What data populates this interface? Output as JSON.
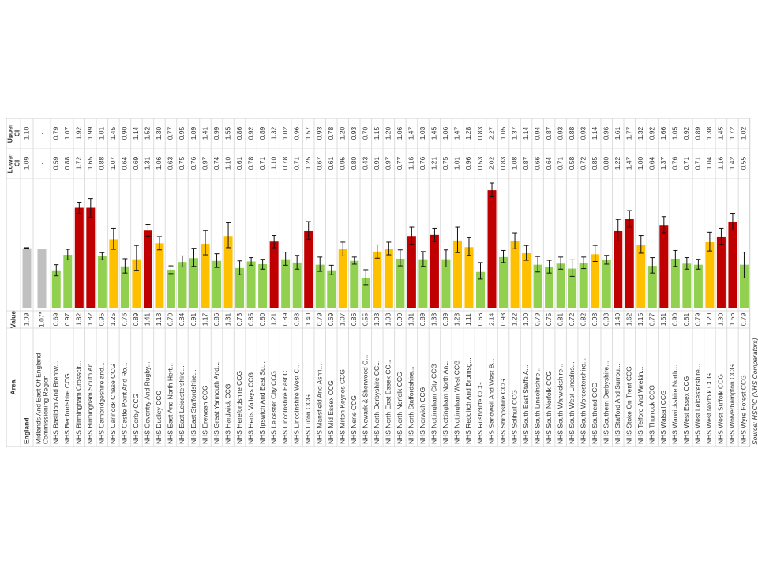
{
  "headers": {
    "area": "Area",
    "value": "Value",
    "lower": [
      "Lower",
      "CI"
    ],
    "upper": [
      "Upper",
      "CI"
    ]
  },
  "source": "Source: HSCIC (NHS Comparators)",
  "rows": [
    {
      "area": "England",
      "value": "1.09",
      "lower": "1.09",
      "upper": "1.10",
      "color": "#c0c0c0"
    },
    {
      "area": [
        "Midlands And East Of England",
        "Commissioning Region"
      ],
      "value": "1.07*",
      "lower": "-",
      "upper": "-",
      "color": "#c0c0c0"
    },
    {
      "area": "NHS Basildon And Brentw...",
      "value": "0.69",
      "lower": "0.59",
      "upper": "0.79",
      "color": "#92d050"
    },
    {
      "area": "NHS Bedfordshire CCG",
      "value": "0.97",
      "lower": "0.88",
      "upper": "1.07",
      "color": "#92d050"
    },
    {
      "area": "NHS Birmingham Crosscit...",
      "value": "1.82",
      "lower": "1.72",
      "upper": "1.92",
      "color": "#c00000"
    },
    {
      "area": "NHS Birmingham South An...",
      "value": "1.82",
      "lower": "1.65",
      "upper": "1.99",
      "color": "#c00000"
    },
    {
      "area": "NHS Cambridgeshire and...",
      "value": "0.95",
      "lower": "0.88",
      "upper": "1.01",
      "color": "#92d050"
    },
    {
      "area": "NHS Cannock Chase CCG",
      "value": "1.25",
      "lower": "1.07",
      "upper": "1.45",
      "color": "#ffc000"
    },
    {
      "area": "NHS Castle Point And Ro...",
      "value": "0.76",
      "lower": "0.64",
      "upper": "0.90",
      "color": "#92d050"
    },
    {
      "area": "NHS Corby CCG",
      "value": "0.89",
      "lower": "0.69",
      "upper": "1.14",
      "color": "#ffc000"
    },
    {
      "area": "NHS Coventry And Rugby...",
      "value": "1.41",
      "lower": "1.31",
      "upper": "1.52",
      "color": "#c00000"
    },
    {
      "area": "NHS Dudley CCG",
      "value": "1.18",
      "lower": "1.06",
      "upper": "1.30",
      "color": "#ffc000"
    },
    {
      "area": "NHS East And North Hert...",
      "value": "0.70",
      "lower": "0.63",
      "upper": "0.77",
      "color": "#92d050"
    },
    {
      "area": "NHS East Leicestershire...",
      "value": "0.84",
      "lower": "0.75",
      "upper": "0.95",
      "color": "#92d050"
    },
    {
      "area": "NHS East Staffordshire...",
      "value": "0.91",
      "lower": "0.76",
      "upper": "1.09",
      "color": "#92d050"
    },
    {
      "area": "NHS Erewash CCG",
      "value": "1.17",
      "lower": "0.97",
      "upper": "1.41",
      "color": "#ffc000"
    },
    {
      "area": "NHS Great Yarmouth And...",
      "value": "0.86",
      "lower": "0.74",
      "upper": "0.99",
      "color": "#92d050"
    },
    {
      "area": "NHS Hardwick CCG",
      "value": "1.31",
      "lower": "1.10",
      "upper": "1.55",
      "color": "#ffc000"
    },
    {
      "area": "NHS Herefordshire CCG",
      "value": "0.73",
      "lower": "0.61",
      "upper": "0.86",
      "color": "#92d050"
    },
    {
      "area": "NHS Herts Valleys CCG",
      "value": "0.85",
      "lower": "0.78",
      "upper": "0.92",
      "color": "#92d050"
    },
    {
      "area": "NHS Ipswich And East Su...",
      "value": "0.80",
      "lower": "0.71",
      "upper": "0.89",
      "color": "#92d050"
    },
    {
      "area": "NHS Leicester City CCG",
      "value": "1.21",
      "lower": "1.10",
      "upper": "1.32",
      "color": "#c00000"
    },
    {
      "area": "NHS Lincolnshire East C...",
      "value": "0.89",
      "lower": "0.78",
      "upper": "1.02",
      "color": "#92d050"
    },
    {
      "area": "NHS Lincolnshire West C...",
      "value": "0.83",
      "lower": "0.71",
      "upper": "0.96",
      "color": "#92d050"
    },
    {
      "area": "NHS Luton CCG",
      "value": "1.40",
      "lower": "1.25",
      "upper": "1.57",
      "color": "#c00000"
    },
    {
      "area": "NHS Mansfield And Ashfi...",
      "value": "0.79",
      "lower": "0.67",
      "upper": "0.93",
      "color": "#92d050"
    },
    {
      "area": "NHS Mid Essex CCG",
      "value": "0.69",
      "lower": "0.61",
      "upper": "0.78",
      "color": "#92d050"
    },
    {
      "area": "NHS Milton Keynes CCG",
      "value": "1.07",
      "lower": "0.95",
      "upper": "1.20",
      "color": "#ffc000"
    },
    {
      "area": "NHS Nene CCG",
      "value": "0.86",
      "lower": "0.80",
      "upper": "0.93",
      "color": "#92d050"
    },
    {
      "area": "NHS Newark & Sherwood C...",
      "value": "0.55",
      "lower": "0.43",
      "upper": "0.70",
      "color": "#92d050"
    },
    {
      "area": "NHS North Derbyshire CC...",
      "value": "1.03",
      "lower": "0.91",
      "upper": "1.15",
      "color": "#ffc000"
    },
    {
      "area": "NHS North East Essex CC...",
      "value": "1.08",
      "lower": "0.97",
      "upper": "1.20",
      "color": "#ffc000"
    },
    {
      "area": "NHS North Norfolk CCG",
      "value": "0.90",
      "lower": "0.77",
      "upper": "1.06",
      "color": "#92d050"
    },
    {
      "area": "NHS North Staffordshire...",
      "value": "1.31",
      "lower": "1.16",
      "upper": "1.47",
      "color": "#c00000"
    },
    {
      "area": "NHS Norwich CCG",
      "value": "0.89",
      "lower": "0.76",
      "upper": "1.03",
      "color": "#92d050"
    },
    {
      "area": "NHS Nottingham City CCG",
      "value": "1.33",
      "lower": "1.21",
      "upper": "1.45",
      "color": "#c00000"
    },
    {
      "area": "NHS Nottingham North An...",
      "value": "0.89",
      "lower": "0.75",
      "upper": "1.06",
      "color": "#92d050"
    },
    {
      "area": "NHS Nottingham West CCG",
      "value": "1.23",
      "lower": "1.01",
      "upper": "1.47",
      "color": "#ffc000"
    },
    {
      "area": "NHS Redditch And Bromsg...",
      "value": "1.11",
      "lower": "0.96",
      "upper": "1.28",
      "color": "#ffc000"
    },
    {
      "area": "NHS Rushcliffe CCG",
      "value": "0.66",
      "lower": "0.53",
      "upper": "0.83",
      "color": "#92d050"
    },
    {
      "area": "NHS Sandwell And West B...",
      "value": "2.14",
      "lower": "2.02",
      "upper": "2.27",
      "color": "#c00000"
    },
    {
      "area": "NHS Shropshire CCG",
      "value": "0.93",
      "lower": "0.83",
      "upper": "1.05",
      "color": "#92d050"
    },
    {
      "area": "NHS Solihull CCG",
      "value": "1.22",
      "lower": "1.08",
      "upper": "1.37",
      "color": "#ffc000"
    },
    {
      "area": "NHS South East Staffs A...",
      "value": "1.00",
      "lower": "0.87",
      "upper": "1.14",
      "color": "#ffc000"
    },
    {
      "area": "NHS South Lincolnshire...",
      "value": "0.79",
      "lower": "0.66",
      "upper": "0.94",
      "color": "#92d050"
    },
    {
      "area": "NHS South Norfolk CCG",
      "value": "0.75",
      "lower": "0.64",
      "upper": "0.87",
      "color": "#92d050"
    },
    {
      "area": "NHS South Warwickshire...",
      "value": "0.81",
      "lower": "0.71",
      "upper": "0.93",
      "color": "#92d050"
    },
    {
      "area": "NHS South West Lincolns...",
      "value": "0.72",
      "lower": "0.58",
      "upper": "0.88",
      "color": "#92d050"
    },
    {
      "area": "NHS South Worcestershire...",
      "value": "0.82",
      "lower": "0.72",
      "upper": "0.93",
      "color": "#92d050"
    },
    {
      "area": "NHS Southend CCG",
      "value": "0.98",
      "lower": "0.85",
      "upper": "1.14",
      "color": "#ffc000"
    },
    {
      "area": "NHS Southern Derbyshire...",
      "value": "0.88",
      "lower": "0.80",
      "upper": "0.96",
      "color": "#92d050"
    },
    {
      "area": "NHS Stafford And Surrou...",
      "value": "1.40",
      "lower": "1.22",
      "upper": "1.61",
      "color": "#c00000"
    },
    {
      "area": "NHS Stoke On Trent CCG",
      "value": "1.62",
      "lower": "1.47",
      "upper": "1.77",
      "color": "#c00000"
    },
    {
      "area": "NHS Telford And Wrekin...",
      "value": "1.15",
      "lower": "1.00",
      "upper": "1.32",
      "color": "#ffc000"
    },
    {
      "area": "NHS Thurrock CCG",
      "value": "0.77",
      "lower": "0.64",
      "upper": "0.92",
      "color": "#92d050"
    },
    {
      "area": "NHS Walsall CCG",
      "value": "1.51",
      "lower": "1.37",
      "upper": "1.66",
      "color": "#c00000"
    },
    {
      "area": "NHS Warwickshire North...",
      "value": "0.90",
      "lower": "0.76",
      "upper": "1.05",
      "color": "#92d050"
    },
    {
      "area": "NHS West Essex CCG",
      "value": "0.81",
      "lower": "0.71",
      "upper": "0.92",
      "color": "#92d050"
    },
    {
      "area": "NHS West Leicestershire...",
      "value": "0.79",
      "lower": "0.71",
      "upper": "0.89",
      "color": "#92d050"
    },
    {
      "area": "NHS West Norfolk CCG",
      "value": "1.20",
      "lower": "1.04",
      "upper": "1.38",
      "color": "#ffc000"
    },
    {
      "area": "NHS West Suffolk CCG",
      "value": "1.30",
      "lower": "1.16",
      "upper": "1.45",
      "color": "#c00000"
    },
    {
      "area": "NHS Wolverhampton CCG",
      "value": "1.56",
      "lower": "1.42",
      "upper": "1.72",
      "color": "#c00000"
    },
    {
      "area": "NHS Wyre Forest CCG",
      "value": "0.79",
      "lower": "0.55",
      "upper": "1.02",
      "color": "#92d050"
    }
  ]
}
